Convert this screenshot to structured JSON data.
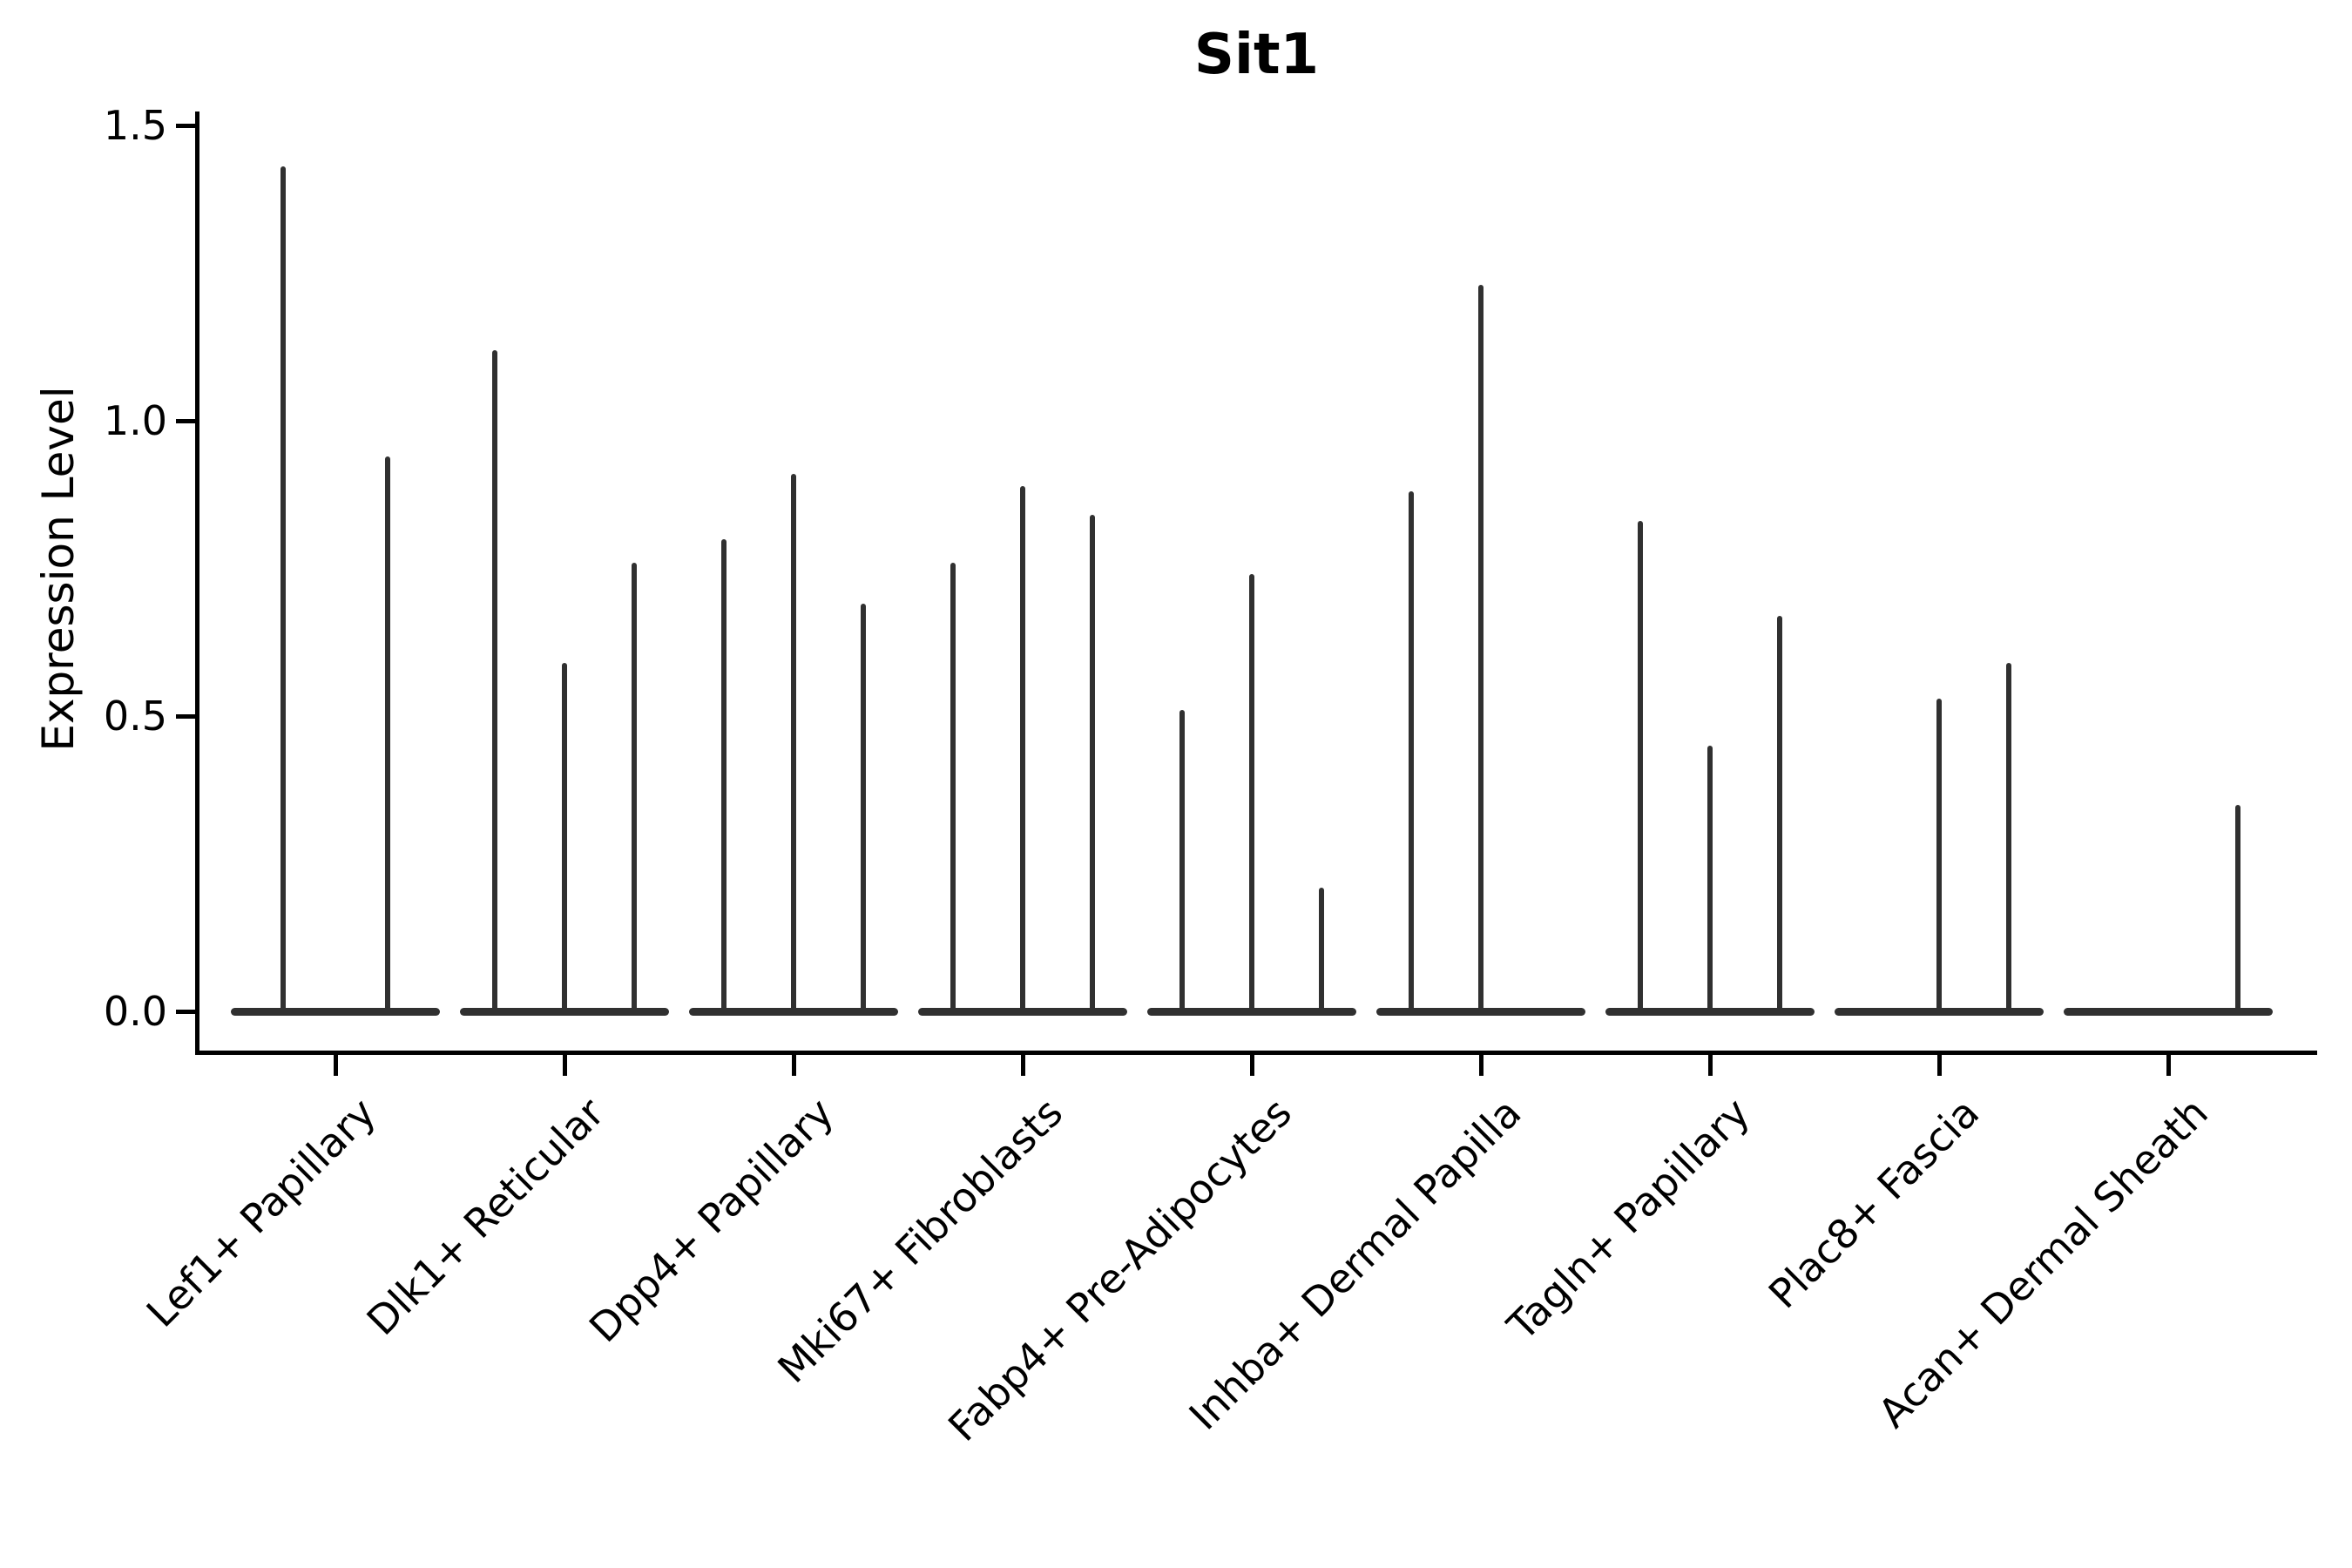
{
  "title": "Sit1",
  "y_axis": {
    "label": "Expression Level",
    "ticks": [
      {
        "label": "0.0",
        "value": 0.0
      },
      {
        "label": "0.5",
        "value": 0.5
      },
      {
        "label": "1.0",
        "value": 1.0
      },
      {
        "label": "1.5",
        "value": 1.5
      }
    ]
  },
  "chart_data": {
    "type": "violin",
    "title": "Sit1",
    "xlabel": "",
    "ylabel": "Expression Level",
    "ylim": [
      0,
      1.5
    ],
    "yticks": [
      0.0,
      0.5,
      1.0,
      1.5
    ],
    "legend": "none",
    "grid": false,
    "categories": [
      "Lef1+ Papillary",
      "Dlk1+ Reticular",
      "Dpp4+ Papillary",
      "Mki67+ Fibroblasts",
      "Fabp4+ Pre-Adipocytes",
      "Inhba+ Dermal Papilla",
      "Tagln+ Papillary",
      "Plac8+ Fascia",
      "Acan+ Dermal Sheath"
    ],
    "groups": [
      {
        "category": "Lef1+ Papillary",
        "violin_peaks": [
          1.43,
          0.94
        ]
      },
      {
        "category": "Dlk1+ Reticular",
        "violin_peaks": [
          1.12,
          0.59,
          0.76
        ]
      },
      {
        "category": "Dpp4+ Papillary",
        "violin_peaks": [
          0.8,
          0.91,
          0.69
        ]
      },
      {
        "category": "Mki67+ Fibroblasts",
        "violin_peaks": [
          0.76,
          0.89,
          0.84
        ]
      },
      {
        "category": "Fabp4+ Pre-Adipocytes",
        "violin_peaks": [
          0.51,
          0.74,
          0.21
        ]
      },
      {
        "category": "Inhba+ Dermal Papilla",
        "violin_peaks": [
          0.88,
          1.23,
          0
        ]
      },
      {
        "category": "Tagln+ Papillary",
        "violin_peaks": [
          0.83,
          0.45,
          0.67
        ]
      },
      {
        "category": "Plac8+ Fascia",
        "violin_peaks": [
          0,
          0.53,
          0.59
        ]
      },
      {
        "category": "Acan+ Dermal Sheath",
        "violin_peaks": [
          0,
          0,
          0.35
        ]
      }
    ],
    "description": "Violin plot; each violin has a wide flat base at 0 expression and a thin spike rising to its peak expression value; peaks of 0 are flat baselines only"
  },
  "style": {
    "violin_color": "#303030",
    "axis_color": "#000000",
    "background": "#ffffff"
  }
}
